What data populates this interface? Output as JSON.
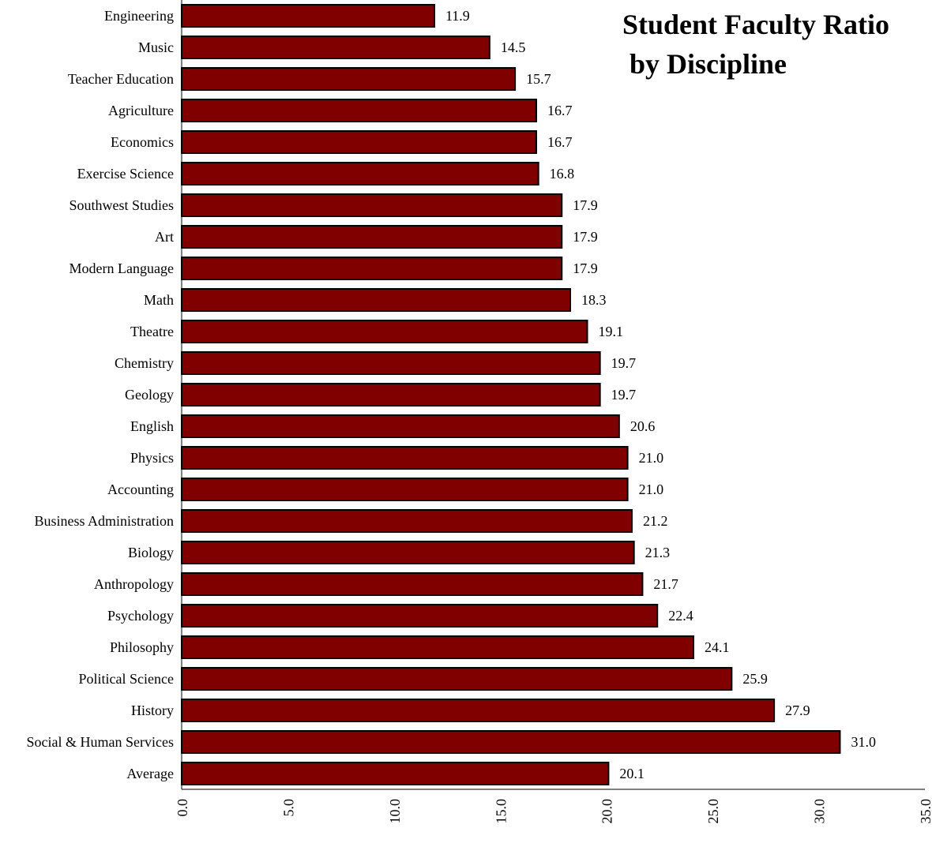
{
  "chart_data": {
    "type": "bar",
    "orientation": "horizontal",
    "title": "Student Faculty Ratio\n by Discipline",
    "categories": [
      "Engineering",
      "Music",
      "Teacher Education",
      "Agriculture",
      "Economics",
      "Exercise Science",
      "Southwest Studies",
      "Art",
      "Modern Language",
      "Math",
      "Theatre",
      "Chemistry",
      "Geology",
      "English",
      "Physics",
      "Accounting",
      "Business Administration",
      "Biology",
      "Anthropology",
      "Psychology",
      "Philosophy",
      "Political Science",
      "History",
      "Social & Human Services",
      "Average"
    ],
    "values": [
      11.9,
      14.5,
      15.7,
      16.7,
      16.7,
      16.8,
      17.9,
      17.9,
      17.9,
      18.3,
      19.1,
      19.7,
      19.7,
      20.6,
      21.0,
      21.0,
      21.2,
      21.3,
      21.7,
      22.4,
      24.1,
      25.9,
      27.9,
      31.0,
      20.1
    ],
    "value_labels": [
      "11.9",
      "14.5",
      "15.7",
      "16.7",
      "16.7",
      "16.8",
      "17.9",
      "17.9",
      "17.9",
      "18.3",
      "19.1",
      "19.7",
      "19.7",
      "20.6",
      "21.0",
      "21.0",
      "21.2",
      "21.3",
      "21.7",
      "22.4",
      "24.1",
      "25.9",
      "27.9",
      "31.0",
      "20.1"
    ],
    "xlim": [
      0,
      35
    ],
    "x_ticks": [
      0,
      5,
      10,
      15,
      20,
      25,
      30,
      35
    ],
    "x_tick_labels": [
      "0.0",
      "5.0",
      "10.0",
      "15.0",
      "20.0",
      "25.0",
      "30.0",
      "35.0"
    ],
    "xlabel": "",
    "ylabel": "",
    "grid": false,
    "legend": "none",
    "bar_color": "#800000",
    "bar_edge_color": "#000000"
  }
}
